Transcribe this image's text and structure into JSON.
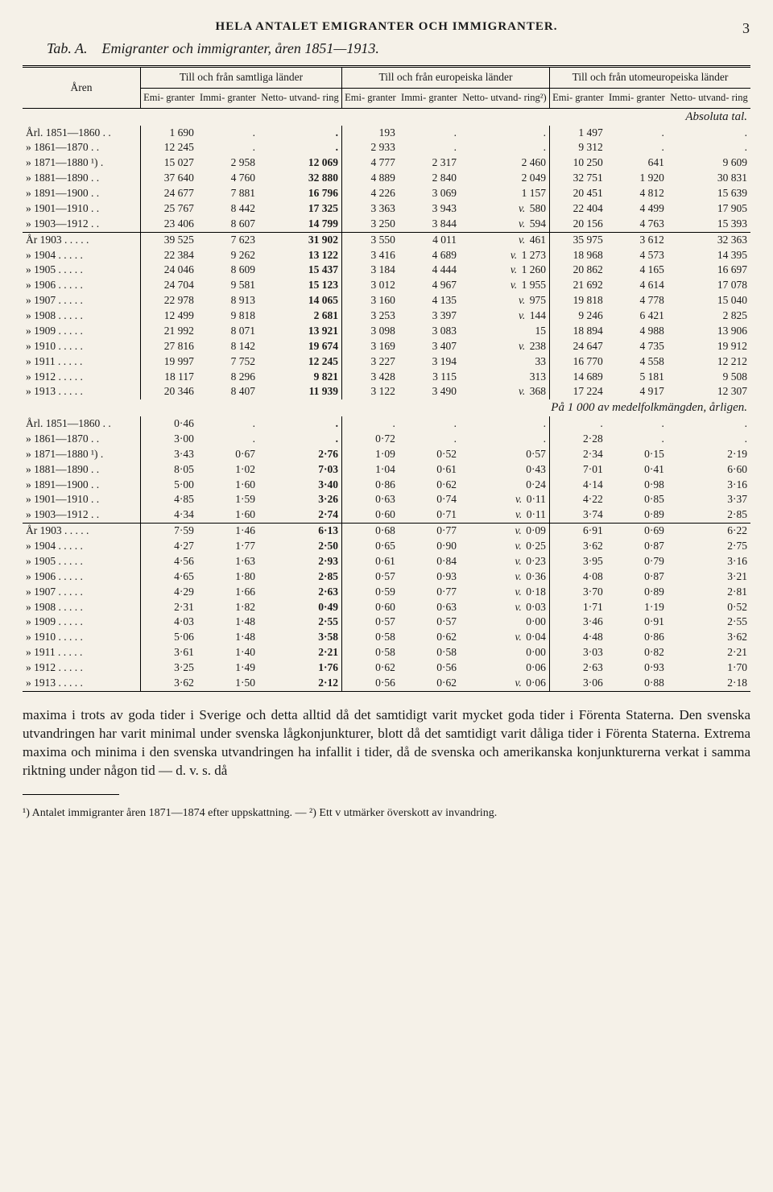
{
  "page_number": "3",
  "running_head": "HELA ANTALET EMIGRANTER OCH IMMIGRANTER.",
  "table_title_prefix": "Tab. A.",
  "table_title": "Emigranter och immigranter, åren 1851—1913.",
  "header": {
    "years_label": "Åren",
    "groups": [
      "Till och från samtliga länder",
      "Till och från europeiska länder",
      "Till och från utomeuropeiska länder"
    ],
    "subcols": [
      "Emi-\ngranter",
      "Immi-\ngranter",
      "Netto-\nutvand-\nring"
    ],
    "subcols_eur_net": "Netto-\nutvand-\nring²)"
  },
  "section1_title": "Absoluta tal.",
  "abs_rows": [
    {
      "label": "Årl. 1851—1860 . .",
      "c": [
        "1 690",
        ".",
        ".",
        "193",
        ".",
        ".",
        "1 497",
        ".",
        "."
      ]
    },
    {
      "label": "»   1861—1870 . .",
      "c": [
        "12 245",
        ".",
        ".",
        "2 933",
        ".",
        ".",
        "9 312",
        ".",
        "."
      ]
    },
    {
      "label": "»   1871—1880 ¹) .",
      "c": [
        "15 027",
        "2 958",
        "12 069",
        "4 777",
        "2 317",
        "2 460",
        "10 250",
        "641",
        "9 609"
      ]
    },
    {
      "label": "»   1881—1890 . .",
      "c": [
        "37 640",
        "4 760",
        "32 880",
        "4 889",
        "2 840",
        "2 049",
        "32 751",
        "1 920",
        "30 831"
      ]
    },
    {
      "label": "»   1891—1900 . .",
      "c": [
        "24 677",
        "7 881",
        "16 796",
        "4 226",
        "3 069",
        "1 157",
        "20 451",
        "4 812",
        "15 639"
      ]
    },
    {
      "label": "»   1901—1910 . .",
      "c": [
        "25 767",
        "8 442",
        "17 325",
        "3 363",
        "3 943",
        "v. 580",
        "22 404",
        "4 499",
        "17 905"
      ]
    },
    {
      "label": "»   1903—1912 . .",
      "c": [
        "23 406",
        "8 607",
        "14 799",
        "3 250",
        "3 844",
        "v. 594",
        "20 156",
        "4 763",
        "15 393"
      ]
    }
  ],
  "abs_year_rows": [
    {
      "label": "År 1903 . . . . .",
      "c": [
        "39 525",
        "7 623",
        "31 902",
        "3 550",
        "4 011",
        "v. 461",
        "35 975",
        "3 612",
        "32 363"
      ]
    },
    {
      "label": "»  1904 . . . . .",
      "c": [
        "22 384",
        "9 262",
        "13 122",
        "3 416",
        "4 689",
        "v. 1 273",
        "18 968",
        "4 573",
        "14 395"
      ]
    },
    {
      "label": "»  1905 . . . . .",
      "c": [
        "24 046",
        "8 609",
        "15 437",
        "3 184",
        "4 444",
        "v. 1 260",
        "20 862",
        "4 165",
        "16 697"
      ]
    },
    {
      "label": "»  1906 . . . . .",
      "c": [
        "24 704",
        "9 581",
        "15 123",
        "3 012",
        "4 967",
        "v. 1 955",
        "21 692",
        "4 614",
        "17 078"
      ]
    },
    {
      "label": "»  1907 . . . . .",
      "c": [
        "22 978",
        "8 913",
        "14 065",
        "3 160",
        "4 135",
        "v. 975",
        "19 818",
        "4 778",
        "15 040"
      ]
    },
    {
      "label": "»  1908 . . . . .",
      "c": [
        "12 499",
        "9 818",
        "2 681",
        "3 253",
        "3 397",
        "v. 144",
        "9 246",
        "6 421",
        "2 825"
      ]
    },
    {
      "label": "»  1909 . . . . .",
      "c": [
        "21 992",
        "8 071",
        "13 921",
        "3 098",
        "3 083",
        "15",
        "18 894",
        "4 988",
        "13 906"
      ]
    },
    {
      "label": "»  1910 . . . . .",
      "c": [
        "27 816",
        "8 142",
        "19 674",
        "3 169",
        "3 407",
        "v. 238",
        "24 647",
        "4 735",
        "19 912"
      ]
    },
    {
      "label": "»  1911 . . . . .",
      "c": [
        "19 997",
        "7 752",
        "12 245",
        "3 227",
        "3 194",
        "33",
        "16 770",
        "4 558",
        "12 212"
      ]
    },
    {
      "label": "»  1912 . . . . .",
      "c": [
        "18 117",
        "8 296",
        "9 821",
        "3 428",
        "3 115",
        "313",
        "14 689",
        "5 181",
        "9 508"
      ]
    },
    {
      "label": "»  1913 . . . . .",
      "c": [
        "20 346",
        "8 407",
        "11 939",
        "3 122",
        "3 490",
        "v. 368",
        "17 224",
        "4 917",
        "12 307"
      ]
    }
  ],
  "section2_title": "På 1 000 av medelfolkmängden, årligen.",
  "rate_rows": [
    {
      "label": "Årl. 1851—1860 . .",
      "c": [
        "0·46",
        ".",
        ".",
        ".",
        ".",
        ".",
        ".",
        ".",
        "."
      ]
    },
    {
      "label": "»   1861—1870 . .",
      "c": [
        "3·00",
        ".",
        ".",
        "0·72",
        ".",
        ".",
        "2·28",
        ".",
        "."
      ]
    },
    {
      "label": "»   1871—1880 ¹) .",
      "c": [
        "3·43",
        "0·67",
        "2·76",
        "1·09",
        "0·52",
        "0·57",
        "2·34",
        "0·15",
        "2·19"
      ]
    },
    {
      "label": "»   1881—1890 . .",
      "c": [
        "8·05",
        "1·02",
        "7·03",
        "1·04",
        "0·61",
        "0·43",
        "7·01",
        "0·41",
        "6·60"
      ]
    },
    {
      "label": "»   1891—1900 . .",
      "c": [
        "5·00",
        "1·60",
        "3·40",
        "0·86",
        "0·62",
        "0·24",
        "4·14",
        "0·98",
        "3·16"
      ]
    },
    {
      "label": "»   1901—1910 . .",
      "c": [
        "4·85",
        "1·59",
        "3·26",
        "0·63",
        "0·74",
        "v. 0·11",
        "4·22",
        "0·85",
        "3·37"
      ]
    },
    {
      "label": "»   1903—1912 . .",
      "c": [
        "4·34",
        "1·60",
        "2·74",
        "0·60",
        "0·71",
        "v. 0·11",
        "3·74",
        "0·89",
        "2·85"
      ]
    }
  ],
  "rate_year_rows": [
    {
      "label": "År 1903 . . . . .",
      "c": [
        "7·59",
        "1·46",
        "6·13",
        "0·68",
        "0·77",
        "v. 0·09",
        "6·91",
        "0·69",
        "6·22"
      ]
    },
    {
      "label": "»  1904 . . . . .",
      "c": [
        "4·27",
        "1·77",
        "2·50",
        "0·65",
        "0·90",
        "v. 0·25",
        "3·62",
        "0·87",
        "2·75"
      ]
    },
    {
      "label": "»  1905 . . . . .",
      "c": [
        "4·56",
        "1·63",
        "2·93",
        "0·61",
        "0·84",
        "v. 0·23",
        "3·95",
        "0·79",
        "3·16"
      ]
    },
    {
      "label": "»  1906 . . . . .",
      "c": [
        "4·65",
        "1·80",
        "2·85",
        "0·57",
        "0·93",
        "v. 0·36",
        "4·08",
        "0·87",
        "3·21"
      ]
    },
    {
      "label": "»  1907 . . . . .",
      "c": [
        "4·29",
        "1·66",
        "2·63",
        "0·59",
        "0·77",
        "v. 0·18",
        "3·70",
        "0·89",
        "2·81"
      ]
    },
    {
      "label": "»  1908 . . . . .",
      "c": [
        "2·31",
        "1·82",
        "0·49",
        "0·60",
        "0·63",
        "v. 0·03",
        "1·71",
        "1·19",
        "0·52"
      ]
    },
    {
      "label": "»  1909 . . . . .",
      "c": [
        "4·03",
        "1·48",
        "2·55",
        "0·57",
        "0·57",
        "0·00",
        "3·46",
        "0·91",
        "2·55"
      ]
    },
    {
      "label": "»  1910 . . . . .",
      "c": [
        "5·06",
        "1·48",
        "3·58",
        "0·58",
        "0·62",
        "v. 0·04",
        "4·48",
        "0·86",
        "3·62"
      ]
    },
    {
      "label": "»  1911 . . . . .",
      "c": [
        "3·61",
        "1·40",
        "2·21",
        "0·58",
        "0·58",
        "0·00",
        "3·03",
        "0·82",
        "2·21"
      ]
    },
    {
      "label": "»  1912 . . . . .",
      "c": [
        "3·25",
        "1·49",
        "1·76",
        "0·62",
        "0·56",
        "0·06",
        "2·63",
        "0·93",
        "1·70"
      ]
    },
    {
      "label": "»  1913 . . . . .",
      "c": [
        "3·62",
        "1·50",
        "2·12",
        "0·56",
        "0·62",
        "v. 0·06",
        "3·06",
        "0·88",
        "2·18"
      ]
    }
  ],
  "body_text": "maxima i trots av goda tider i Sverige och detta alltid då det samtidigt varit mycket goda tider i Förenta Staterna. Den svenska utvandringen har varit minimal under svenska lågkonjunkturer, blott då det samtidigt varit dåliga tider i Förenta Staterna. Extrema maxima och minima i den svenska utvandringen ha infallit i tider, då de svenska och amerikanska konjunkturerna verkat i samma riktning under någon tid — d. v. s. då",
  "footnote": "¹) Antalet immigranter åren 1871—1874 efter uppskattning. — ²) Ett v utmärker överskott av invandring."
}
